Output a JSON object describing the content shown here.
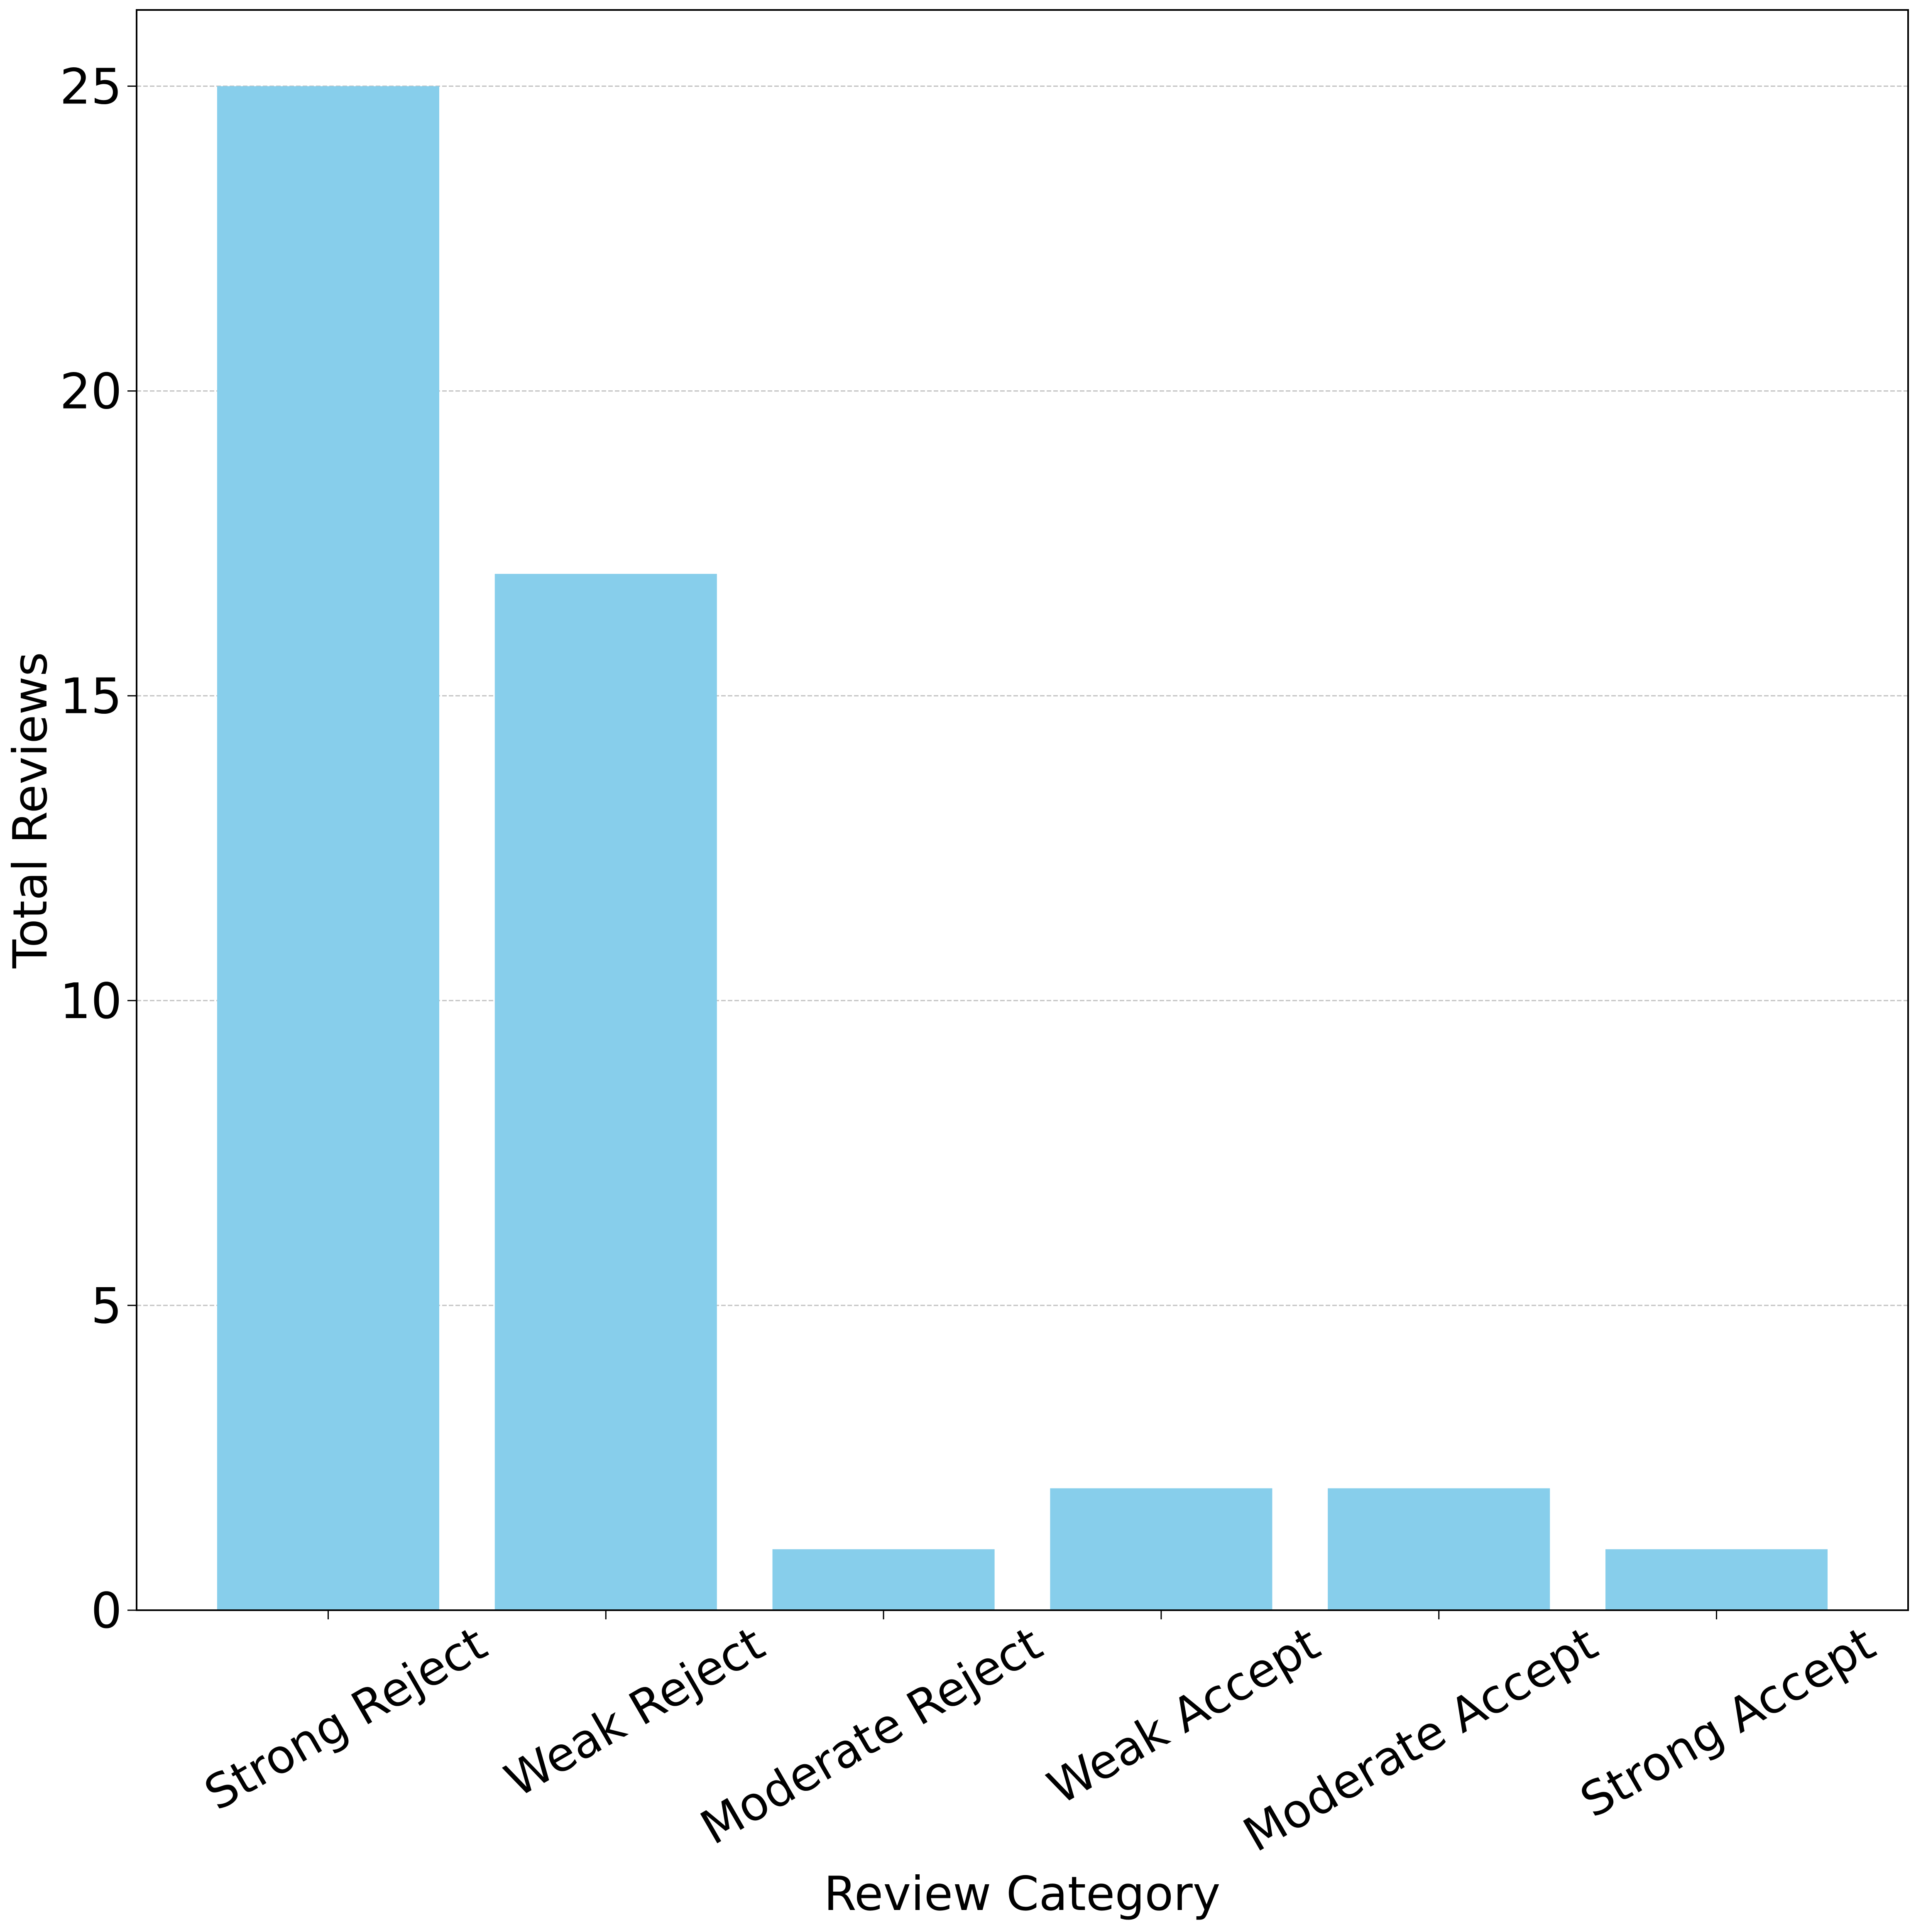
{
  "chart_data": {
    "type": "bar",
    "categories": [
      "Strong Reject",
      "Weak Reject",
      "Moderate Reject",
      "Weak Accept",
      "Moderate Accept",
      "Strong Accept"
    ],
    "values": [
      25,
      17,
      1,
      2,
      2,
      1
    ],
    "title": "",
    "xlabel": "Review Category",
    "ylabel": "Total Reviews",
    "ylim": [
      0,
      26.25
    ],
    "yticks": [
      0,
      5,
      10,
      15,
      20,
      25
    ],
    "grid": "y-dashed",
    "bar_color": "#87CEEB",
    "legend": "none"
  }
}
